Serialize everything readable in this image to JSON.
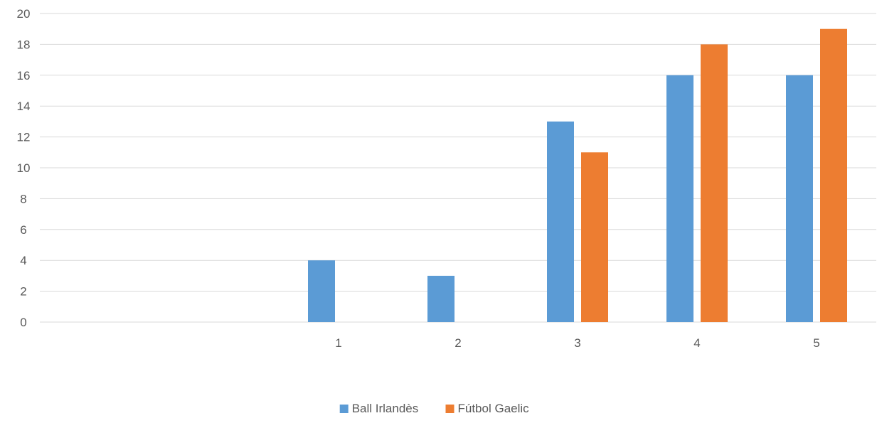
{
  "chart_data": {
    "type": "bar",
    "categories": [
      "",
      "",
      "1",
      "2",
      "3",
      "4",
      "5"
    ],
    "series": [
      {
        "name": "Ball Irlandès",
        "color": "#5B9BD5",
        "values": [
          null,
          null,
          4,
          3,
          13,
          16,
          16
        ]
      },
      {
        "name": "Fútbol Gaelic",
        "color": "#ED7D31",
        "values": [
          null,
          null,
          null,
          null,
          11,
          18,
          19
        ]
      }
    ],
    "ylim": [
      0,
      20
    ],
    "yticks": [
      0,
      2,
      4,
      6,
      8,
      10,
      12,
      14,
      16,
      18,
      20
    ],
    "grid": true,
    "legend_position": "bottom",
    "title": "",
    "xlabel": "",
    "ylabel": ""
  }
}
